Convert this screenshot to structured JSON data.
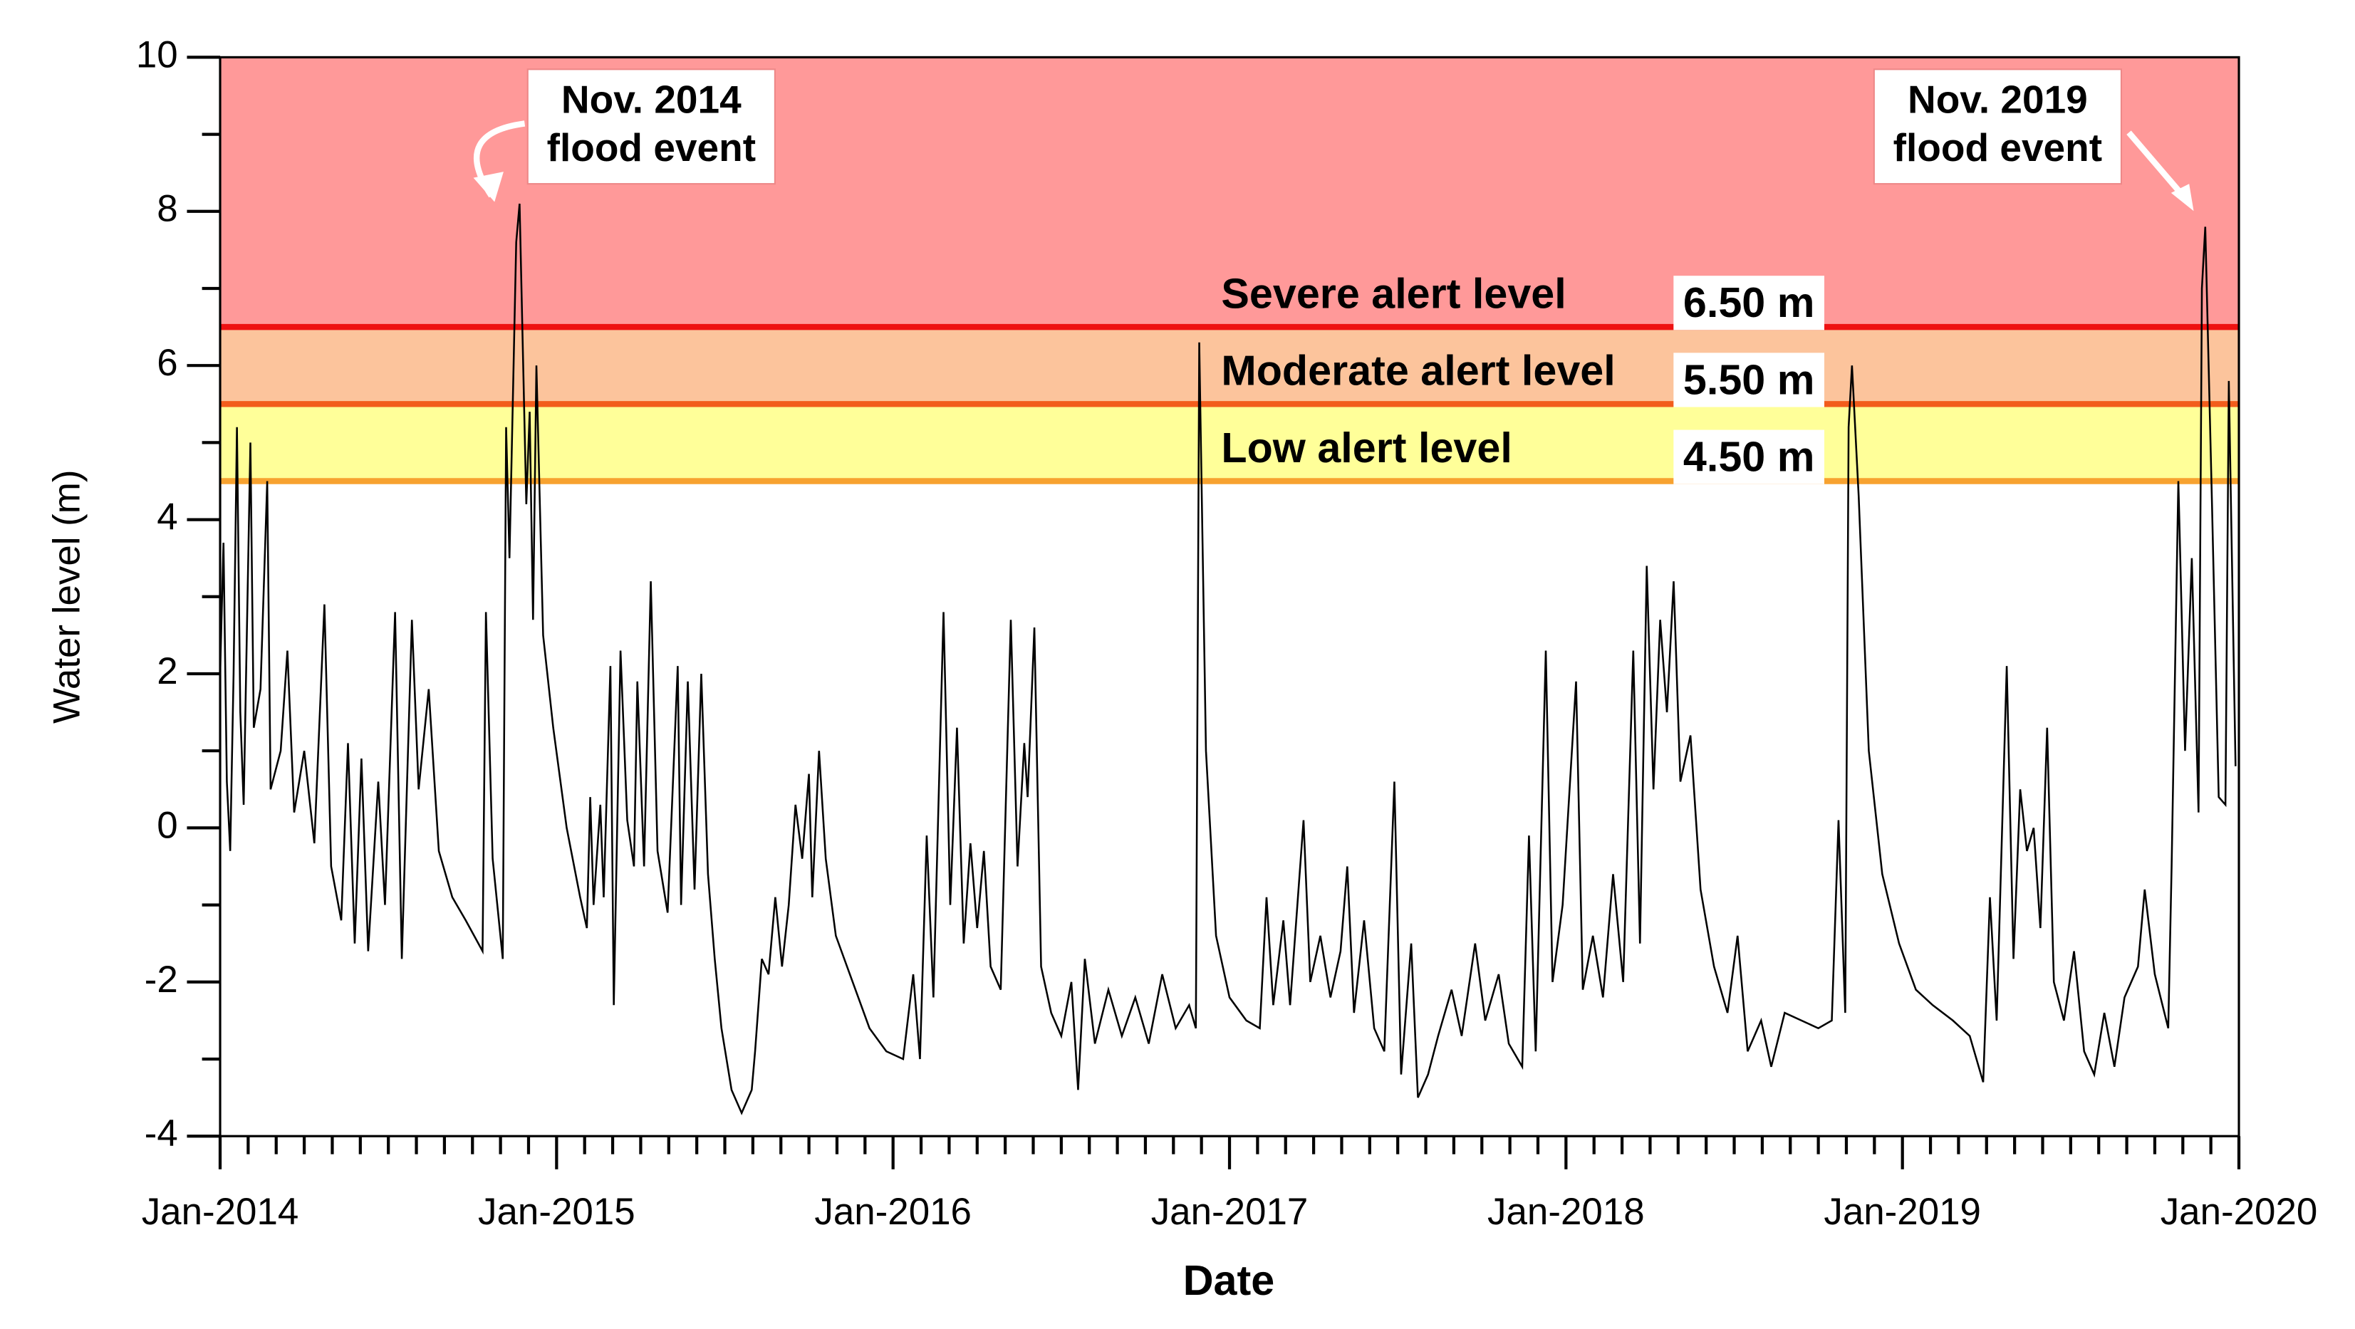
{
  "chart_data": {
    "type": "line",
    "xlabel": "Date",
    "ylabel": "Water level (m)",
    "color": "#000000",
    "xlim": [
      2014,
      2020
    ],
    "xticks": [
      {
        "value": 2014,
        "label": "Jan-2014"
      },
      {
        "value": 2015,
        "label": "Jan-2015"
      },
      {
        "value": 2016,
        "label": "Jan-2016"
      },
      {
        "value": 2017,
        "label": "Jan-2017"
      },
      {
        "value": 2018,
        "label": "Jan-2018"
      },
      {
        "value": 2019,
        "label": "Jan-2019"
      },
      {
        "value": 2020,
        "label": "Jan-2020"
      }
    ],
    "ylim": [
      -4,
      10
    ],
    "yticks": [
      -4,
      -2,
      0,
      2,
      4,
      6,
      8,
      10
    ],
    "alert_levels": [
      {
        "name": "Low alert level",
        "value": 4.5,
        "label": "4.50 m",
        "color": "#f7a230",
        "band_color": "#ffff99"
      },
      {
        "name": "Moderate alert level",
        "value": 5.5,
        "label": "5.50 m",
        "color": "#f25c1c",
        "band_color": "#fcc49c"
      },
      {
        "name": "Severe alert level",
        "value": 6.5,
        "label": "6.50 m",
        "color": "#ee1111",
        "band_color": "#ff9999"
      }
    ],
    "annotations": [
      [
        "Nov. 2014",
        "flood event"
      ],
      [
        "Nov. 2019",
        "flood event"
      ]
    ],
    "x": [
      2014.0,
      2014.01,
      2014.02,
      2014.03,
      2014.04,
      2014.05,
      2014.06,
      2014.07,
      2014.09,
      2014.1,
      2014.12,
      2014.14,
      2014.15,
      2014.18,
      2014.2,
      2014.22,
      2014.25,
      2014.28,
      2014.31,
      2014.33,
      2014.36,
      2014.38,
      2014.4,
      2014.42,
      2014.44,
      2014.47,
      2014.49,
      2014.52,
      2014.54,
      2014.57,
      2014.59,
      2014.62,
      2014.65,
      2014.69,
      2014.73,
      2014.78,
      2014.79,
      2014.81,
      2014.84,
      2014.85,
      2014.86,
      2014.88,
      2014.89,
      2014.91,
      2014.92,
      2014.93,
      2014.94,
      2014.96,
      2014.99,
      2015.03,
      2015.07,
      2015.09,
      2015.1,
      2015.11,
      2015.13,
      2015.14,
      2015.16,
      2015.17,
      2015.19,
      2015.21,
      2015.23,
      2015.24,
      2015.26,
      2015.28,
      2015.3,
      2015.33,
      2015.36,
      2015.37,
      2015.39,
      2015.41,
      2015.43,
      2015.45,
      2015.47,
      2015.49,
      2015.52,
      2015.55,
      2015.58,
      2015.59,
      2015.61,
      2015.63,
      2015.65,
      2015.67,
      2015.69,
      2015.71,
      2015.73,
      2015.75,
      2015.76,
      2015.78,
      2015.8,
      2015.83,
      2015.88,
      2015.93,
      2015.98,
      2016.03,
      2016.06,
      2016.08,
      2016.1,
      2016.12,
      2016.15,
      2016.17,
      2016.19,
      2016.21,
      2016.23,
      2016.25,
      2016.27,
      2016.29,
      2016.32,
      2016.35,
      2016.37,
      2016.39,
      2016.4,
      2016.42,
      2016.44,
      2016.47,
      2016.5,
      2016.53,
      2016.55,
      2016.57,
      2016.6,
      2016.64,
      2016.68,
      2016.72,
      2016.76,
      2016.8,
      2016.84,
      2016.88,
      2016.9,
      2016.91,
      2016.93,
      2016.96,
      2017.0,
      2017.05,
      2017.09,
      2017.11,
      2017.13,
      2017.16,
      2017.18,
      2017.22,
      2017.24,
      2017.27,
      2017.3,
      2017.33,
      2017.35,
      2017.37,
      2017.4,
      2017.43,
      2017.46,
      2017.49,
      2017.51,
      2017.54,
      2017.56,
      2017.59,
      2017.62,
      2017.66,
      2017.69,
      2017.73,
      2017.76,
      2017.8,
      2017.83,
      2017.87,
      2017.89,
      2017.91,
      2017.94,
      2017.96,
      2017.99,
      2018.03,
      2018.05,
      2018.08,
      2018.11,
      2018.14,
      2018.17,
      2018.2,
      2018.22,
      2018.24,
      2018.26,
      2018.28,
      2018.3,
      2018.32,
      2018.34,
      2018.37,
      2018.4,
      2018.44,
      2018.48,
      2018.51,
      2018.54,
      2018.58,
      2018.61,
      2018.65,
      2018.7,
      2018.75,
      2018.79,
      2018.81,
      2018.83,
      2018.84,
      2018.85,
      2018.87,
      2018.9,
      2018.94,
      2018.99,
      2019.04,
      2019.09,
      2019.15,
      2019.2,
      2019.24,
      2019.26,
      2019.28,
      2019.31,
      2019.33,
      2019.35,
      2019.37,
      2019.39,
      2019.41,
      2019.43,
      2019.45,
      2019.48,
      2019.51,
      2019.54,
      2019.57,
      2019.6,
      2019.63,
      2019.66,
      2019.7,
      2019.72,
      2019.75,
      2019.79,
      2019.8,
      2019.82,
      2019.84,
      2019.86,
      2019.88,
      2019.89,
      2019.9,
      2019.92,
      2019.94,
      2019.96,
      2019.97,
      2019.99
    ],
    "values": [
      2.0,
      3.7,
      0.6,
      -0.3,
      2.0,
      5.2,
      1.5,
      0.3,
      5.0,
      1.3,
      1.8,
      4.5,
      0.5,
      1.0,
      2.3,
      0.2,
      1.0,
      -0.2,
      2.9,
      -0.5,
      -1.2,
      1.1,
      -1.5,
      0.9,
      -1.6,
      0.6,
      -1.0,
      2.8,
      -1.7,
      2.7,
      0.5,
      1.8,
      -0.3,
      -0.9,
      -1.2,
      -1.6,
      2.8,
      -0.4,
      -1.7,
      5.2,
      3.5,
      7.6,
      8.1,
      4.2,
      5.4,
      2.7,
      6.0,
      2.5,
      1.3,
      0.0,
      -0.9,
      -1.3,
      0.4,
      -1.0,
      0.3,
      -0.9,
      2.1,
      -2.3,
      2.3,
      0.1,
      -0.5,
      1.9,
      -0.5,
      3.2,
      -0.3,
      -1.1,
      2.1,
      -1.0,
      1.9,
      -0.8,
      2.0,
      -0.6,
      -1.7,
      -2.6,
      -3.4,
      -3.7,
      -3.4,
      -2.9,
      -1.7,
      -1.9,
      -0.9,
      -1.8,
      -1.0,
      0.3,
      -0.4,
      0.7,
      -0.9,
      1.0,
      -0.4,
      -1.4,
      -2.0,
      -2.6,
      -2.9,
      -3.0,
      -1.9,
      -3.0,
      -0.1,
      -2.2,
      2.8,
      -1.0,
      1.3,
      -1.5,
      -0.2,
      -1.3,
      -0.3,
      -1.8,
      -2.1,
      2.7,
      -0.5,
      1.1,
      0.4,
      2.6,
      -1.8,
      -2.4,
      -2.7,
      -2.0,
      -3.4,
      -1.7,
      -2.8,
      -2.1,
      -2.7,
      -2.2,
      -2.8,
      -1.9,
      -2.6,
      -2.3,
      -2.6,
      6.3,
      1.0,
      -1.4,
      -2.2,
      -2.5,
      -2.6,
      -0.9,
      -2.3,
      -1.2,
      -2.3,
      0.1,
      -2.0,
      -1.4,
      -2.2,
      -1.6,
      -0.5,
      -2.4,
      -1.2,
      -2.6,
      -2.9,
      0.6,
      -3.2,
      -1.5,
      -3.5,
      -3.2,
      -2.7,
      -2.1,
      -2.7,
      -1.5,
      -2.5,
      -1.9,
      -2.8,
      -3.1,
      -0.1,
      -2.9,
      2.3,
      -2.0,
      -1.0,
      1.9,
      -2.1,
      -1.4,
      -2.2,
      -0.6,
      -2.0,
      2.3,
      -1.5,
      3.4,
      0.5,
      2.7,
      1.5,
      3.2,
      0.6,
      1.2,
      -0.8,
      -1.8,
      -2.4,
      -1.4,
      -2.9,
      -2.5,
      -3.1,
      -2.4,
      -2.5,
      -2.6,
      -2.5,
      0.1,
      -2.4,
      5.2,
      6.0,
      4.3,
      1.0,
      -0.6,
      -1.5,
      -2.1,
      -2.3,
      -2.5,
      -2.7,
      -3.3,
      -0.9,
      -2.5,
      2.1,
      -1.7,
      0.5,
      -0.3,
      0.0,
      -1.3,
      1.3,
      -2.0,
      -2.5,
      -1.6,
      -2.9,
      -3.2,
      -2.4,
      -3.1,
      -2.2,
      -1.8,
      -0.8,
      -1.9,
      -2.6,
      -0.5,
      4.5,
      1.0,
      3.5,
      0.2,
      7.0,
      7.8,
      4.2,
      0.4,
      0.3,
      5.8,
      0.8
    ]
  }
}
